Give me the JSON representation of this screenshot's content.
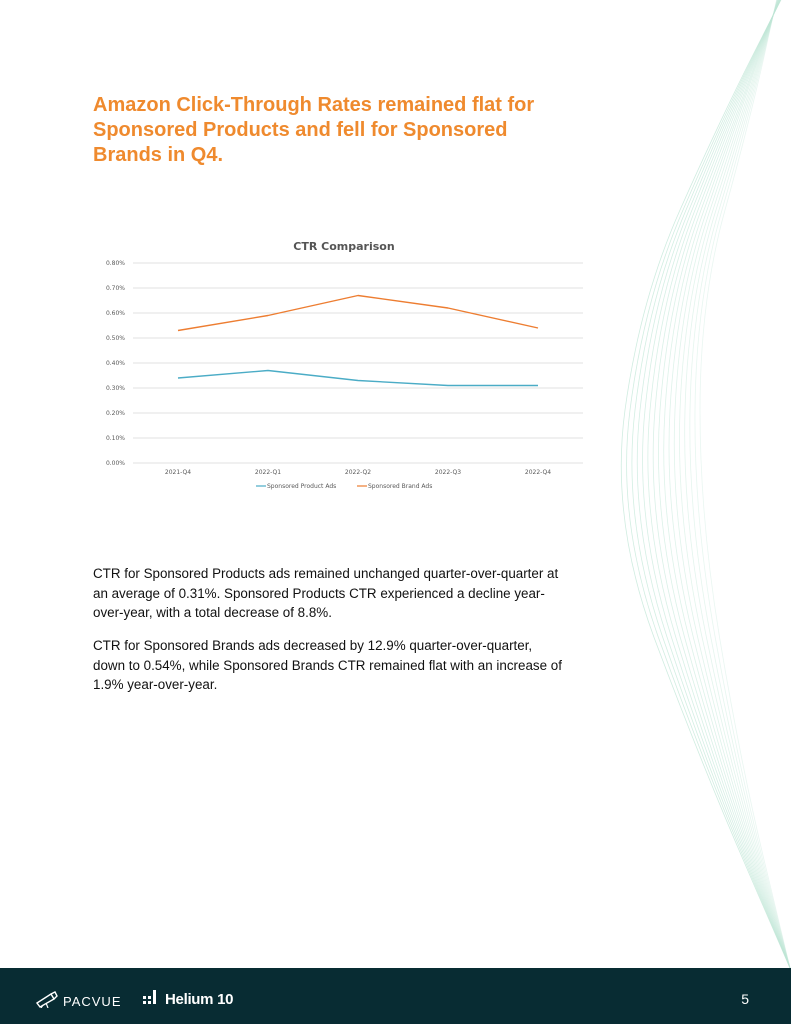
{
  "headline": "Amazon Click-Through Rates remained flat for Sponsored Products and fell for Sponsored Brands in Q4.",
  "chart_data": {
    "type": "line",
    "title": "CTR Comparison",
    "categories": [
      "2021-Q4",
      "2022-Q1",
      "2022-Q2",
      "2022-Q3",
      "2022-Q4"
    ],
    "series": [
      {
        "name": "Sponsored Product Ads",
        "values": [
          0.34,
          0.37,
          0.33,
          0.31,
          0.31
        ],
        "color": "#4bacc6"
      },
      {
        "name": "Sponsored Brand Ads",
        "values": [
          0.53,
          0.59,
          0.67,
          0.62,
          0.54
        ],
        "color": "#ed7d31"
      }
    ],
    "ylim": [
      0,
      0.8
    ],
    "yticks": [
      "0.00%",
      "0.10%",
      "0.20%",
      "0.30%",
      "0.40%",
      "0.50%",
      "0.60%",
      "0.70%",
      "0.80%"
    ],
    "xlabel": "",
    "ylabel": "",
    "grid": true,
    "legend": "bottom"
  },
  "paragraphs": [
    "CTR for Sponsored Products ads remained unchanged quarter-over-quarter at an average of 0.31%. Sponsored Products CTR experienced a decline year-over-year, with a total decrease of 8.8%.",
    "CTR for Sponsored Brands ads decreased by 12.9% quarter-over-quarter, down to 0.54%, while Sponsored Brands CTR remained flat with an increase of 1.9% year-over-year."
  ],
  "footer": {
    "brand_left": "PACVUE",
    "brand_right": "Helium 10",
    "page_number": "5",
    "background": "#082c33"
  },
  "colors": {
    "accent": "#ef8a2e",
    "wave": "#bfe6d6"
  },
  "icons": {
    "pacvue_logo": "telescope-icon",
    "helium_logo": "bars-grid-icon"
  }
}
